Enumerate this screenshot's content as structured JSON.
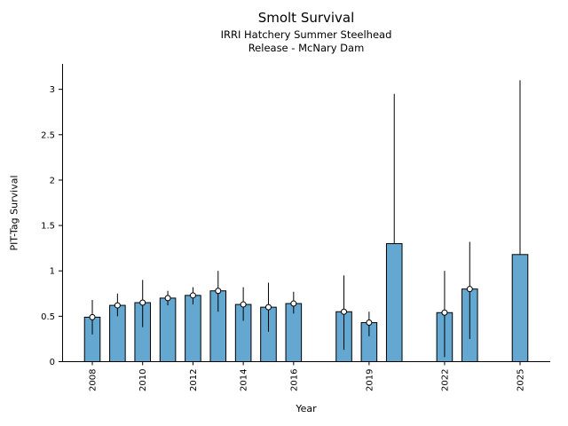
{
  "chart_data": {
    "type": "bar",
    "title": "Smolt Survival",
    "subtitle": [
      "IRRI Hatchery Summer Steelhead",
      "Release - McNary Dam"
    ],
    "xlabel": "Year",
    "ylabel": "PIT-Tag Survival",
    "xlim": [
      2006.8,
      2026.2
    ],
    "ylim": [
      0,
      3.28
    ],
    "yticks": [
      0,
      0.5,
      1,
      1.5,
      2,
      2.5,
      3
    ],
    "ytick_labels": [
      "0",
      "0.5",
      "1",
      "1.5",
      "2",
      "2.5",
      "3"
    ],
    "xticks": [
      2008,
      2010,
      2012,
      2014,
      2016,
      2019,
      2022,
      2025
    ],
    "grid": false,
    "legend": false,
    "bar_color": "#64a8d2",
    "bar_edge_color": "#000000",
    "error_bar_color": "#000000",
    "marker_style": "open-circle",
    "series": [
      {
        "year": 2008,
        "value": 0.49,
        "err_lo": 0.3,
        "err_hi": 0.68,
        "marker": true
      },
      {
        "year": 2009,
        "value": 0.62,
        "err_lo": 0.5,
        "err_hi": 0.75,
        "marker": true
      },
      {
        "year": 2010,
        "value": 0.65,
        "err_lo": 0.38,
        "err_hi": 0.9,
        "marker": true
      },
      {
        "year": 2011,
        "value": 0.7,
        "err_lo": 0.62,
        "err_hi": 0.78,
        "marker": true
      },
      {
        "year": 2012,
        "value": 0.73,
        "err_lo": 0.63,
        "err_hi": 0.82,
        "marker": true
      },
      {
        "year": 2013,
        "value": 0.78,
        "err_lo": 0.55,
        "err_hi": 1.0,
        "marker": true
      },
      {
        "year": 2014,
        "value": 0.63,
        "err_lo": 0.45,
        "err_hi": 0.82,
        "marker": true
      },
      {
        "year": 2015,
        "value": 0.6,
        "err_lo": 0.33,
        "err_hi": 0.87,
        "marker": true
      },
      {
        "year": 2016,
        "value": 0.64,
        "err_lo": 0.53,
        "err_hi": 0.77,
        "marker": true
      },
      {
        "year": 2018,
        "value": 0.55,
        "err_lo": 0.13,
        "err_hi": 0.95,
        "marker": true
      },
      {
        "year": 2019,
        "value": 0.43,
        "err_lo": 0.28,
        "err_hi": 0.55,
        "marker": true
      },
      {
        "year": 2020,
        "value": 1.3,
        "err_lo": null,
        "err_hi": 2.95,
        "marker": false
      },
      {
        "year": 2022,
        "value": 0.54,
        "err_lo": 0.05,
        "err_hi": 1.0,
        "marker": true
      },
      {
        "year": 2023,
        "value": 0.8,
        "err_lo": 0.25,
        "err_hi": 1.32,
        "marker": true
      },
      {
        "year": 2025,
        "value": 1.18,
        "err_lo": null,
        "err_hi": 3.1,
        "marker": false
      }
    ]
  }
}
